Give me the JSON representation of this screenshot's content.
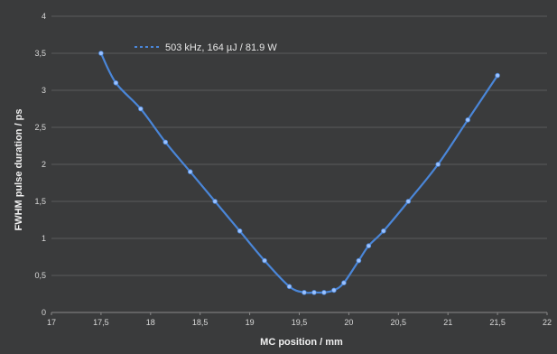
{
  "chart_data": {
    "type": "line",
    "title": "",
    "xlabel": "MC position / mm",
    "ylabel": "FWHM pulse duration / ps",
    "xlim": [
      17,
      22
    ],
    "ylim": [
      0,
      4
    ],
    "x_ticks": [
      "17",
      "17,5",
      "18",
      "18,5",
      "19",
      "19,5",
      "20",
      "20,5",
      "21",
      "21,5",
      "22"
    ],
    "y_ticks": [
      "0",
      "0,5",
      "1",
      "1,5",
      "2",
      "2,5",
      "3",
      "3,5",
      "4"
    ],
    "grid": true,
    "legend_position": "top-left",
    "series": [
      {
        "name": "503 kHz, 164 µJ / 81.9 W",
        "color": "#4a86d8",
        "x": [
          17.5,
          17.65,
          17.9,
          18.15,
          18.4,
          18.65,
          18.9,
          19.15,
          19.4,
          19.55,
          19.65,
          19.75,
          19.85,
          19.95,
          20.1,
          20.2,
          20.35,
          20.6,
          20.9,
          21.2,
          21.5
        ],
        "y": [
          3.5,
          3.1,
          2.75,
          2.3,
          1.9,
          1.5,
          1.1,
          0.7,
          0.35,
          0.27,
          0.27,
          0.27,
          0.3,
          0.4,
          0.7,
          0.9,
          1.1,
          1.5,
          2.0,
          2.6,
          3.2
        ]
      }
    ]
  }
}
